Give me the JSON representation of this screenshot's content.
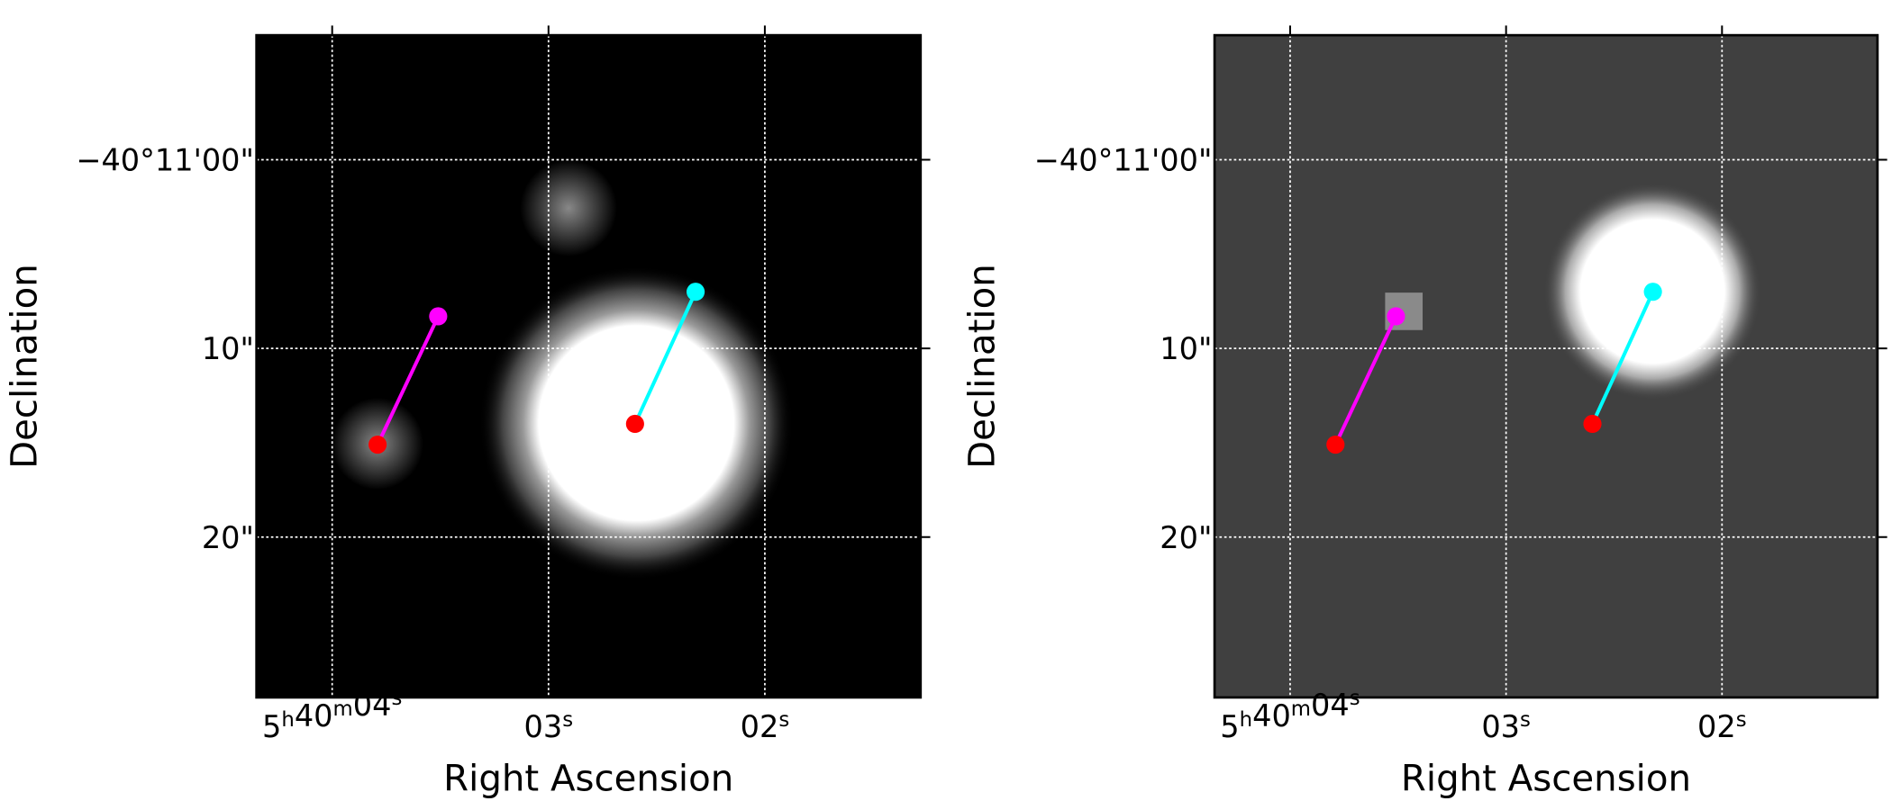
{
  "chart_data": [
    {
      "type": "sky-image",
      "xlabel": "Right Ascension",
      "ylabel": "Declination",
      "background": "#000000",
      "grid": true,
      "xlim": [
        4.35,
        1.28
      ],
      "ylim": [
        28.5,
        -6.6
      ],
      "xticks": [
        {
          "value": 4,
          "label": "5h40m04s"
        },
        {
          "value": 3,
          "label": "03s"
        },
        {
          "value": 2,
          "label": "02s"
        }
      ],
      "yticks": [
        {
          "value": 0,
          "label": "−40°11'00\""
        },
        {
          "value": 10,
          "label": "10\""
        },
        {
          "value": 20,
          "label": "20\""
        }
      ],
      "segments": [
        {
          "color": "#ff00ff",
          "start_color": "#ff0000",
          "x": [
            3.79,
            3.51
          ],
          "y": [
            15.1,
            8.3
          ]
        },
        {
          "color": "#00ffff",
          "start_color": "#ff0000",
          "x": [
            2.6,
            2.32
          ],
          "y": [
            14.0,
            7.0
          ]
        }
      ]
    },
    {
      "type": "sky-image",
      "xlabel": "Right Ascension",
      "ylabel": "Declination",
      "background": "#404040",
      "grid": true,
      "xlim": [
        4.35,
        1.28
      ],
      "ylim": [
        28.5,
        -6.6
      ],
      "xticks": [
        {
          "value": 4,
          "label": "5h40m04s"
        },
        {
          "value": 3,
          "label": "03s"
        },
        {
          "value": 2,
          "label": "02s"
        }
      ],
      "yticks": [
        {
          "value": 0,
          "label": "−40°11'00\""
        },
        {
          "value": 10,
          "label": "10\""
        },
        {
          "value": 20,
          "label": "20\""
        }
      ],
      "segments": [
        {
          "color": "#ff00ff",
          "start_color": "#ff0000",
          "x": [
            3.79,
            3.51
          ],
          "y": [
            15.1,
            8.3
          ]
        },
        {
          "color": "#00ffff",
          "start_color": "#ff0000",
          "x": [
            2.6,
            2.32
          ],
          "y": [
            14.0,
            7.0
          ]
        }
      ]
    }
  ]
}
